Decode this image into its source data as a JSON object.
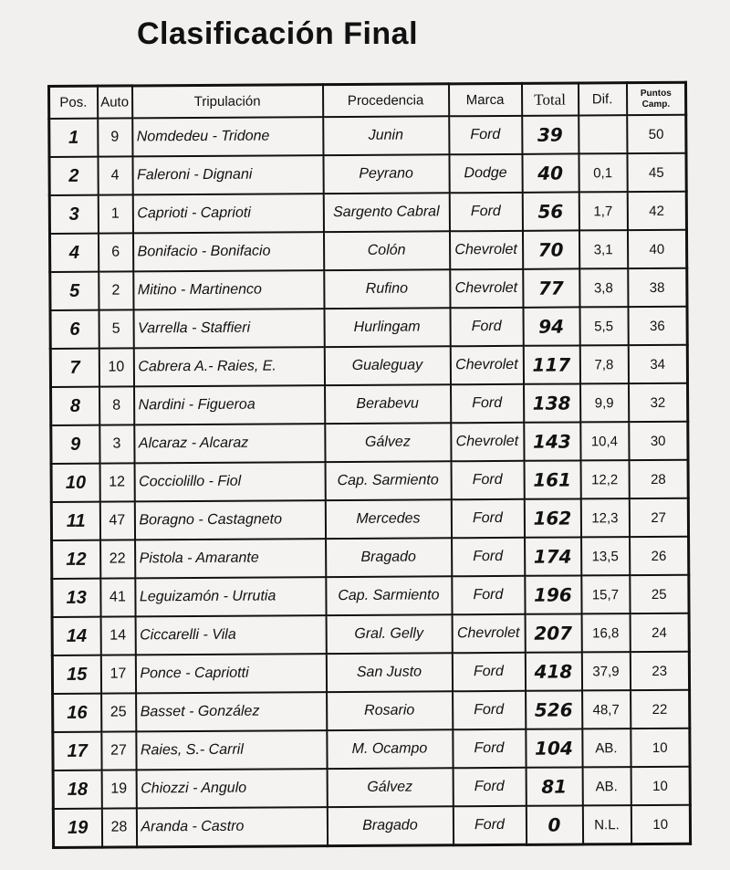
{
  "title": "Clasificación Final",
  "headers": {
    "pos": "Pos.",
    "auto": "Auto",
    "trip": "Tripulación",
    "proc": "Procedencia",
    "marca": "Marca",
    "total": "Total",
    "dif": "Dif.",
    "pts_1": "Puntos",
    "pts_2": "Camp."
  },
  "rows": [
    {
      "pos": "1",
      "auto": "9",
      "trip": "Nomdedeu - Tridone",
      "proc": "Junin",
      "marca": "Ford",
      "total": "39",
      "dif": "",
      "pts": "50"
    },
    {
      "pos": "2",
      "auto": "4",
      "trip": "Faleroni - Dignani",
      "proc": "Peyrano",
      "marca": "Dodge",
      "total": "40",
      "dif": "0,1",
      "pts": "45"
    },
    {
      "pos": "3",
      "auto": "1",
      "trip": "Caprioti - Caprioti",
      "proc": "Sargento Cabral",
      "marca": "Ford",
      "total": "56",
      "dif": "1,7",
      "pts": "42"
    },
    {
      "pos": "4",
      "auto": "6",
      "trip": "Bonifacio - Bonifacio",
      "proc": "Colón",
      "marca": "Chevrolet",
      "total": "70",
      "dif": "3,1",
      "pts": "40"
    },
    {
      "pos": "5",
      "auto": "2",
      "trip": "Mitino - Martinenco",
      "proc": "Rufino",
      "marca": "Chevrolet",
      "total": "77",
      "dif": "3,8",
      "pts": "38"
    },
    {
      "pos": "6",
      "auto": "5",
      "trip": "Varrella - Staffieri",
      "proc": "Hurlingam",
      "marca": "Ford",
      "total": "94",
      "dif": "5,5",
      "pts": "36"
    },
    {
      "pos": "7",
      "auto": "10",
      "trip": "Cabrera A.- Raies, E.",
      "proc": "Gualeguay",
      "marca": "Chevrolet",
      "total": "117",
      "dif": "7,8",
      "pts": "34"
    },
    {
      "pos": "8",
      "auto": "8",
      "trip": "Nardini - Figueroa",
      "proc": "Berabevu",
      "marca": "Ford",
      "total": "138",
      "dif": "9,9",
      "pts": "32"
    },
    {
      "pos": "9",
      "auto": "3",
      "trip": "Alcaraz - Alcaraz",
      "proc": "Gálvez",
      "marca": "Chevrolet",
      "total": "143",
      "dif": "10,4",
      "pts": "30"
    },
    {
      "pos": "10",
      "auto": "12",
      "trip": "Cocciolillo - Fiol",
      "proc": "Cap. Sarmiento",
      "marca": "Ford",
      "total": "161",
      "dif": "12,2",
      "pts": "28"
    },
    {
      "pos": "11",
      "auto": "47",
      "trip": "Boragno - Castagneto",
      "proc": "Mercedes",
      "marca": "Ford",
      "total": "162",
      "dif": "12,3",
      "pts": "27"
    },
    {
      "pos": "12",
      "auto": "22",
      "trip": "Pistola - Amarante",
      "proc": "Bragado",
      "marca": "Ford",
      "total": "174",
      "dif": "13,5",
      "pts": "26"
    },
    {
      "pos": "13",
      "auto": "41",
      "trip": "Leguizamón - Urrutia",
      "proc": "Cap. Sarmiento",
      "marca": "Ford",
      "total": "196",
      "dif": "15,7",
      "pts": "25"
    },
    {
      "pos": "14",
      "auto": "14",
      "trip": "Ciccarelli - Vila",
      "proc": "Gral. Gelly",
      "marca": "Chevrolet",
      "total": "207",
      "dif": "16,8",
      "pts": "24"
    },
    {
      "pos": "15",
      "auto": "17",
      "trip": "Ponce - Capriotti",
      "proc": "San Justo",
      "marca": "Ford",
      "total": "418",
      "dif": "37,9",
      "pts": "23"
    },
    {
      "pos": "16",
      "auto": "25",
      "trip": "Basset - González",
      "proc": "Rosario",
      "marca": "Ford",
      "total": "526",
      "dif": "48,7",
      "pts": "22"
    },
    {
      "pos": "17",
      "auto": "27",
      "trip": "Raies, S.- Carril",
      "proc": "M. Ocampo",
      "marca": "Ford",
      "total": "104",
      "dif": "AB.",
      "pts": "10"
    },
    {
      "pos": "18",
      "auto": "19",
      "trip": "Chiozzi - Angulo",
      "proc": "Gálvez",
      "marca": "Ford",
      "total": "81",
      "dif": "AB.",
      "pts": "10"
    },
    {
      "pos": "19",
      "auto": "28",
      "trip": "Aranda - Castro",
      "proc": "Bragado",
      "marca": "Ford",
      "total": "0",
      "dif": "N.L.",
      "pts": "10"
    }
  ]
}
